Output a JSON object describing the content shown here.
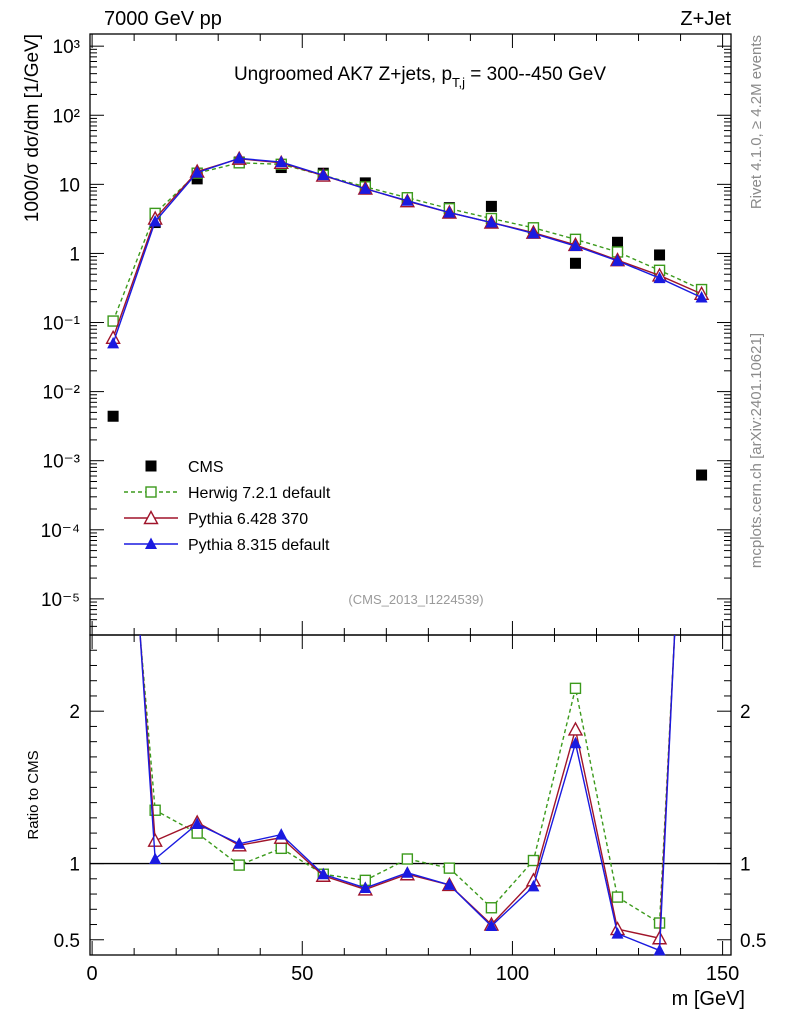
{
  "header": {
    "left_label": "7000 GeV pp",
    "right_label": "Z+Jet"
  },
  "side_text": {
    "version": "Rivet 4.1.0, ≥ 4.2M events",
    "site": "mcplots.cern.ch [arXiv:2401.10621]"
  },
  "chart_data": {
    "type": "line",
    "title": "Ungroomed AK7 Z+jets, p_T,j = 300--450 GeV",
    "analysis_id": "(CMS_2013_I1224539)",
    "xlabel": "m [GeV]",
    "ylabel": "1000/σ  dσ/dm [1/GeV]",
    "ratio_ylabel": "Ratio to CMS",
    "xlim": [
      -0.5,
      152
    ],
    "x_ticks": [
      0,
      50,
      100,
      150
    ],
    "main_ylim": [
      3e-06,
      1500
    ],
    "main_yscale": "log",
    "main_y_ticks": [
      {
        "value": 1e-05,
        "label": "10⁻⁵"
      },
      {
        "value": 0.0001,
        "label": "10⁻⁴"
      },
      {
        "value": 0.001,
        "label": "10⁻³"
      },
      {
        "value": 0.01,
        "label": "10⁻²"
      },
      {
        "value": 0.1,
        "label": "10⁻¹"
      },
      {
        "value": 1,
        "label": "1"
      },
      {
        "value": 10,
        "label": "10"
      },
      {
        "value": 100,
        "label": "10²"
      },
      {
        "value": 1000,
        "label": "10³"
      }
    ],
    "ratio_ylim": [
      0.4,
      2.5
    ],
    "ratio_y_ticks": [
      {
        "value": 0.5,
        "label": "0.5"
      },
      {
        "value": 1,
        "label": "1"
      },
      {
        "value": 2,
        "label": "2"
      }
    ],
    "x": [
      5,
      15,
      25,
      35,
      45,
      55,
      65,
      75,
      85,
      95,
      105,
      115,
      125,
      135,
      145
    ],
    "series": [
      {
        "name": "CMS",
        "style": "data",
        "color": "#000000",
        "values": [
          0.0044,
          2.8,
          12,
          21,
          17.5,
          14.5,
          10.5,
          6.2,
          4.6,
          4.8,
          2.3,
          0.72,
          1.45,
          0.95,
          0.00062
        ]
      },
      {
        "name": "Herwig 7.2.1 default",
        "style": "dashed-open-square",
        "color": "#3c9a1c",
        "values": [
          0.105,
          3.8,
          14.5,
          20.5,
          19.5,
          13.5,
          9.2,
          6.4,
          4.45,
          3.2,
          2.35,
          1.6,
          1.05,
          0.57,
          0.3
        ],
        "ratio": [
          null,
          1.35,
          1.2,
          0.99,
          1.1,
          0.93,
          0.89,
          1.03,
          0.97,
          0.71,
          1.02,
          2.15,
          0.78,
          0.61,
          null
        ]
      },
      {
        "name": "Pythia 6.428 370",
        "style": "solid-open-triangle",
        "color": "#a0142a",
        "values": [
          0.06,
          3.2,
          15.3,
          23.5,
          20.5,
          13.4,
          8.7,
          5.7,
          3.9,
          2.8,
          2.0,
          1.33,
          0.8,
          0.48,
          0.26
        ],
        "ratio": [
          null,
          1.15,
          1.27,
          1.12,
          1.17,
          0.92,
          0.83,
          0.93,
          0.86,
          0.6,
          0.89,
          1.88,
          0.57,
          0.51,
          null
        ]
      },
      {
        "name": "Pythia 8.315 default",
        "style": "solid-filled-triangle",
        "color": "#1a1ae0",
        "values": [
          0.05,
          2.9,
          14.8,
          23.8,
          21,
          13.6,
          8.6,
          5.8,
          3.9,
          2.8,
          1.95,
          1.28,
          0.78,
          0.44,
          0.23
        ],
        "ratio": [
          null,
          1.03,
          1.26,
          1.13,
          1.19,
          0.93,
          0.84,
          0.94,
          0.86,
          0.59,
          0.85,
          1.79,
          0.54,
          0.43,
          null
        ]
      }
    ],
    "ratio_reference_line": 1
  }
}
